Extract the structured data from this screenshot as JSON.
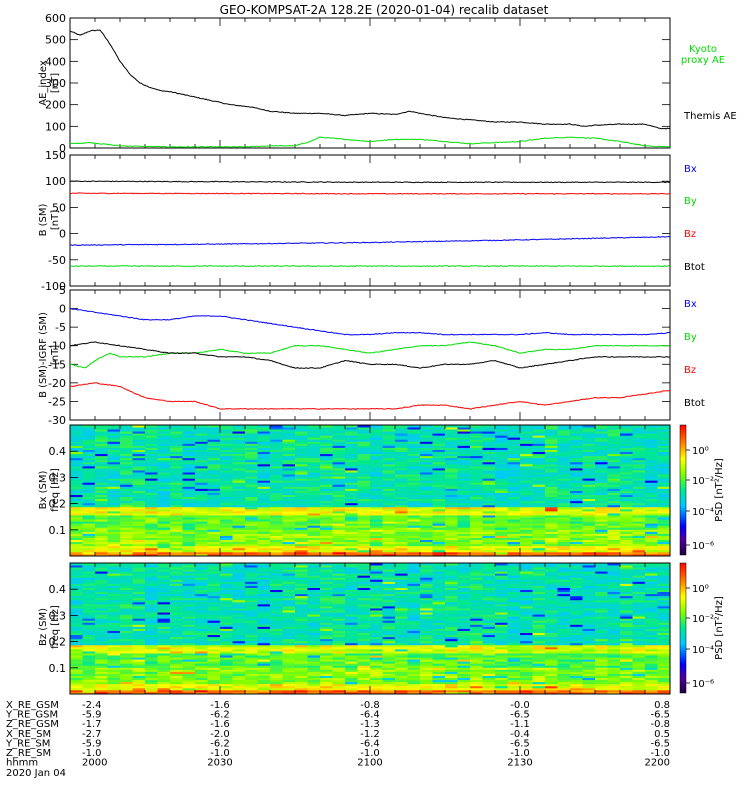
{
  "title": "GEO-KOMPSAT-2A 128.2E (2020-01-04) recalib dataset",
  "chart_data": [
    {
      "type": "line",
      "panel": "ae",
      "ylabel": [
        "AE_index",
        "[nT]"
      ],
      "ylim": [
        0,
        600
      ],
      "yticks": [
        "0",
        "100",
        "200",
        "300",
        "400",
        "500",
        "600"
      ],
      "xlim": [
        0,
        120
      ],
      "series": [
        {
          "name": "Themis AE",
          "color": "#000000",
          "x": [
            0,
            2,
            4,
            6,
            8,
            10,
            12,
            14,
            16,
            18,
            20,
            24,
            28,
            32,
            36,
            40,
            45,
            50,
            55,
            60,
            65,
            68,
            70,
            75,
            80,
            85,
            90,
            95,
            100,
            103,
            105,
            110,
            115,
            118,
            120
          ],
          "y": [
            540,
            520,
            540,
            545,
            480,
            400,
            340,
            300,
            280,
            265,
            260,
            240,
            220,
            200,
            190,
            170,
            160,
            160,
            150,
            160,
            155,
            170,
            160,
            140,
            130,
            120,
            120,
            110,
            110,
            100,
            105,
            110,
            110,
            90,
            90
          ]
        },
        {
          "name": "Kyoto proxy AE",
          "color": "#00dd00",
          "x": [
            0,
            4,
            6,
            10,
            20,
            30,
            35,
            40,
            45,
            48,
            50,
            55,
            60,
            65,
            70,
            75,
            80,
            85,
            90,
            95,
            100,
            105,
            110,
            115,
            120
          ],
          "y": [
            20,
            25,
            20,
            10,
            5,
            5,
            5,
            10,
            10,
            30,
            50,
            40,
            30,
            40,
            40,
            30,
            20,
            25,
            30,
            45,
            50,
            45,
            30,
            10,
            5
          ]
        }
      ]
    },
    {
      "type": "line",
      "panel": "b_sm",
      "ylabel": [
        "B (SM)",
        "[nT]"
      ],
      "ylim": [
        -100,
        150
      ],
      "yticks": [
        "-100",
        "-50",
        "0",
        "50",
        "100",
        "150"
      ],
      "xlim": [
        0,
        120
      ],
      "series": [
        {
          "name": "Btot",
          "color": "#000000",
          "x": [
            0,
            60,
            120
          ],
          "y": [
            100,
            98,
            98
          ]
        },
        {
          "name": "Bz",
          "color": "#ff0000",
          "x": [
            0,
            60,
            120
          ],
          "y": [
            77,
            76,
            76
          ]
        },
        {
          "name": "Bx",
          "color": "#0000ff",
          "x": [
            0,
            30,
            60,
            90,
            120
          ],
          "y": [
            -22,
            -20,
            -17,
            -12,
            -6
          ]
        },
        {
          "name": "By",
          "color": "#00dd00",
          "x": [
            0,
            60,
            120
          ],
          "y": [
            -62,
            -62,
            -62
          ]
        }
      ]
    },
    {
      "type": "line",
      "panel": "b_minus_igrf",
      "ylabel": [
        "B (SM)-IGRF (SM)",
        "[nT]"
      ],
      "ylim": [
        -30,
        5
      ],
      "yticks": [
        "-30",
        "-25",
        "-20",
        "-15",
        "-10",
        "-5",
        "0",
        "5"
      ],
      "xlim": [
        0,
        120
      ],
      "series": [
        {
          "name": "Bx",
          "color": "#0000ff",
          "x": [
            0,
            5,
            10,
            15,
            20,
            25,
            30,
            35,
            40,
            45,
            50,
            55,
            60,
            65,
            70,
            75,
            80,
            85,
            90,
            95,
            100,
            105,
            110,
            115,
            120
          ],
          "y": [
            0,
            -1,
            -2,
            -3,
            -3,
            -2,
            -2,
            -3,
            -4,
            -5,
            -6,
            -7,
            -7,
            -6.5,
            -6.5,
            -7,
            -7,
            -7,
            -7,
            -6.5,
            -7,
            -7,
            -7,
            -7,
            -6.5
          ]
        },
        {
          "name": "By",
          "color": "#00dd00",
          "x": [
            0,
            3,
            5,
            8,
            10,
            15,
            20,
            25,
            30,
            35,
            40,
            45,
            50,
            55,
            60,
            65,
            70,
            75,
            80,
            85,
            90,
            95,
            100,
            105,
            110,
            115,
            120
          ],
          "y": [
            -15,
            -16,
            -14,
            -12,
            -13,
            -13,
            -12,
            -12,
            -11,
            -12,
            -12,
            -10,
            -10,
            -11,
            -12,
            -11,
            -10,
            -10,
            -9,
            -10,
            -12,
            -11,
            -11,
            -10,
            -10,
            -10,
            -10
          ]
        },
        {
          "name": "Btot",
          "color": "#000000",
          "x": [
            0,
            5,
            10,
            15,
            20,
            25,
            30,
            35,
            40,
            45,
            50,
            55,
            60,
            65,
            70,
            75,
            80,
            85,
            90,
            95,
            100,
            105,
            110,
            115,
            120
          ],
          "y": [
            -10,
            -9,
            -10,
            -11,
            -12,
            -12,
            -13,
            -13,
            -14,
            -16,
            -16,
            -14,
            -15,
            -15,
            -16,
            -15,
            -15,
            -14,
            -16,
            -15,
            -14,
            -13,
            -13,
            -13,
            -13
          ]
        },
        {
          "name": "Bz",
          "color": "#ff0000",
          "x": [
            0,
            5,
            10,
            15,
            20,
            25,
            30,
            35,
            40,
            45,
            50,
            55,
            60,
            65,
            70,
            75,
            80,
            85,
            90,
            95,
            100,
            105,
            110,
            115,
            120
          ],
          "y": [
            -21,
            -20,
            -21,
            -24,
            -25,
            -25,
            -27,
            -27,
            -27,
            -27,
            -27,
            -27,
            -27,
            -27,
            -26,
            -26,
            -27,
            -26,
            -25,
            -26,
            -25,
            -24,
            -24,
            -23,
            -22
          ]
        }
      ],
      "legend": [
        "Bx",
        "By",
        "Bz",
        "Btot"
      ]
    },
    {
      "type": "heatmap",
      "panel": "bx_spectrogram",
      "ylabel": [
        "Bx (SM)",
        "freq [Hz]"
      ],
      "yticks": [
        "0.1",
        "0.2",
        "0.3",
        "0.4"
      ],
      "ylim": [
        0,
        0.5
      ],
      "colorbar_label": "PSD [nT²/Hz]",
      "colorbar_ticks": [
        "10⁰",
        "10⁻²",
        "10⁻⁴",
        "10⁻⁶"
      ]
    },
    {
      "type": "heatmap",
      "panel": "bz_spectrogram",
      "ylabel": [
        "Bz (SM)",
        "freq [Hz]"
      ],
      "yticks": [
        "0.1",
        "0.2",
        "0.3",
        "0.4"
      ],
      "ylim": [
        0,
        0.5
      ],
      "colorbar_label": "PSD [nT²/Hz]",
      "colorbar_ticks": [
        "10⁰",
        "10⁻²",
        "10⁻⁴",
        "10⁻⁶"
      ]
    }
  ],
  "ephemeris": {
    "rows": [
      {
        "label": "X_RE_GSM",
        "values": [
          "-2.4",
          "-1.6",
          "-0.8",
          "-0.0",
          "0.8"
        ]
      },
      {
        "label": "Y_RE_GSM",
        "values": [
          "-5.9",
          "-6.2",
          "-6.4",
          "-6.5",
          "-6.5"
        ]
      },
      {
        "label": "Z_RE_GSM",
        "values": [
          "-1.7",
          "-1.6",
          "-1.3",
          "-1.1",
          "-0.8"
        ]
      },
      {
        "label": "X_RE_SM",
        "values": [
          "-2.7",
          "-2.0",
          "-1.2",
          "-0.4",
          "0.5"
        ]
      },
      {
        "label": "Y_RE_SM",
        "values": [
          "-5.9",
          "-6.2",
          "-6.4",
          "-6.5",
          "-6.5"
        ]
      },
      {
        "label": "Z_RE_SM",
        "values": [
          "-1.0",
          "-1.0",
          "-1.0",
          "-1.0",
          "-1.0"
        ]
      },
      {
        "label": "hhmm",
        "values": [
          "2000",
          "2030",
          "2100",
          "2130",
          "2200"
        ]
      }
    ],
    "date": "2020 Jan 04"
  },
  "legend_labels": {
    "ae_kyoto_1": "Kyoto",
    "ae_kyoto_2": "proxy AE",
    "ae_themis": "Themis AE",
    "bsm": [
      "Bx",
      "By",
      "Bz",
      "Btot"
    ],
    "bdiff": [
      "Bx",
      "By",
      "Bz",
      "Btot"
    ]
  },
  "colors": {
    "bx": "#0000ff",
    "by": "#00dd00",
    "bz": "#ff0000",
    "btot": "#000000"
  }
}
